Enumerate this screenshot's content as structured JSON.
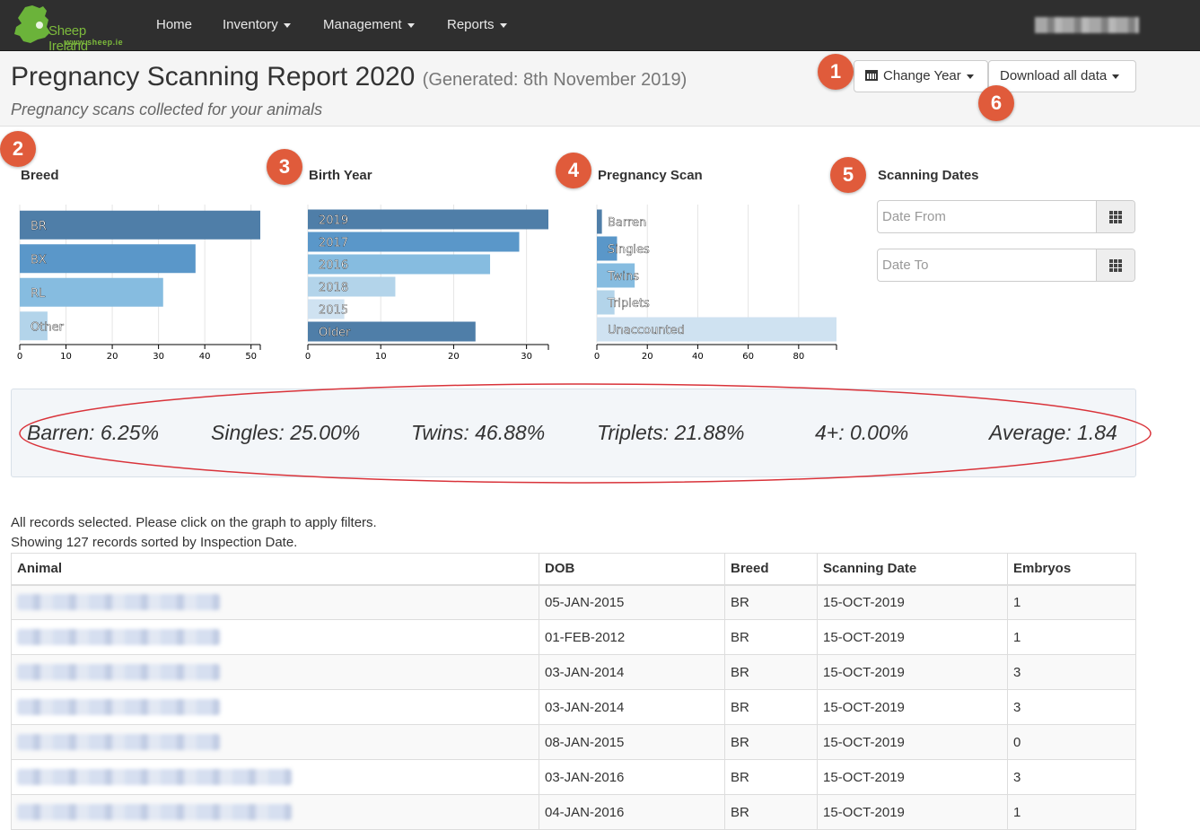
{
  "navbar": {
    "logo_name": "Sheep Ireland",
    "logo_url": "www.sheep.ie",
    "items": [
      {
        "label": "Home",
        "dropdown": false
      },
      {
        "label": "Inventory",
        "dropdown": true
      },
      {
        "label": "Management",
        "dropdown": true
      },
      {
        "label": "Reports",
        "dropdown": true
      }
    ]
  },
  "header": {
    "title": "Pregnancy Scanning Report 2020",
    "generated": "(Generated: 8th November 2019)",
    "subtitle": "Pregnancy scans collected for your animals",
    "change_year_label": "Change Year",
    "download_label": "Download all data"
  },
  "callouts": [
    "1",
    "2",
    "3",
    "4",
    "5",
    "6"
  ],
  "charts": {
    "breed_title": "Breed",
    "birth_year_title": "Birth Year",
    "pregnancy_title": "Pregnancy Scan",
    "dates_title": "Scanning Dates",
    "date_from_placeholder": "Date From",
    "date_to_placeholder": "Date To"
  },
  "chart_data": [
    {
      "type": "bar",
      "orientation": "horizontal",
      "title": "Breed",
      "categories": [
        "BR",
        "BX",
        "RL",
        "Other"
      ],
      "values": [
        52,
        38,
        31,
        6
      ],
      "xlim": [
        0,
        52
      ],
      "xticks": [
        0,
        10,
        20,
        30,
        40,
        50
      ],
      "colors": [
        "#4f7ea8",
        "#5a97c9",
        "#86bce0",
        "#b3d4ea"
      ]
    },
    {
      "type": "bar",
      "orientation": "horizontal",
      "title": "Birth Year",
      "categories": [
        "2019",
        "2017",
        "2016",
        "2018",
        "2015",
        "Older"
      ],
      "values": [
        33,
        29,
        25,
        12,
        5,
        23
      ],
      "xlim": [
        0,
        33
      ],
      "xticks": [
        0,
        10,
        20,
        30
      ],
      "colors": [
        "#4f7ea8",
        "#5a97c9",
        "#86bce0",
        "#b3d4ea",
        "#cfe2f1",
        "#4f7ea8"
      ]
    },
    {
      "type": "bar",
      "orientation": "horizontal",
      "title": "Pregnancy Scan",
      "categories": [
        "Barren",
        "Singles",
        "Twins",
        "Triplets",
        "Unaccounted"
      ],
      "values": [
        2,
        8,
        15,
        7,
        95
      ],
      "xlim": [
        0,
        95
      ],
      "xticks": [
        0,
        20,
        40,
        60,
        80
      ],
      "colors": [
        "#4f7ea8",
        "#5a97c9",
        "#86bce0",
        "#b3d4ea",
        "#cfe2f1"
      ]
    }
  ],
  "stats": [
    {
      "label": "Barren: 6.25%"
    },
    {
      "label": "Singles: 25.00%"
    },
    {
      "label": "Twins: 46.88%"
    },
    {
      "label": "Triplets: 21.88%"
    },
    {
      "label": "4+: 0.00%"
    },
    {
      "label": "Average: 1.84"
    }
  ],
  "info": {
    "line1": "All records selected. Please click on the graph to apply filters.",
    "line2": "Showing 127 records sorted by Inspection Date."
  },
  "table": {
    "columns": [
      "Animal",
      "DOB",
      "Breed",
      "Scanning Date",
      "Embryos"
    ],
    "rows": [
      {
        "dob": "05-JAN-2015",
        "breed": "BR",
        "scan_date": "15-OCT-2019",
        "embryos": "1"
      },
      {
        "dob": "01-FEB-2012",
        "breed": "BR",
        "scan_date": "15-OCT-2019",
        "embryos": "1"
      },
      {
        "dob": "03-JAN-2014",
        "breed": "BR",
        "scan_date": "15-OCT-2019",
        "embryos": "3"
      },
      {
        "dob": "03-JAN-2014",
        "breed": "BR",
        "scan_date": "15-OCT-2019",
        "embryos": "3"
      },
      {
        "dob": "08-JAN-2015",
        "breed": "BR",
        "scan_date": "15-OCT-2019",
        "embryos": "0"
      },
      {
        "dob": "03-JAN-2016",
        "breed": "BR",
        "scan_date": "15-OCT-2019",
        "embryos": "3"
      },
      {
        "dob": "04-JAN-2016",
        "breed": "BR",
        "scan_date": "15-OCT-2019",
        "embryos": "1"
      }
    ]
  },
  "colors": {
    "navbar_bg": "#2f2f2f",
    "badge": "#e05b3b",
    "ellipse": "#d9333a"
  }
}
